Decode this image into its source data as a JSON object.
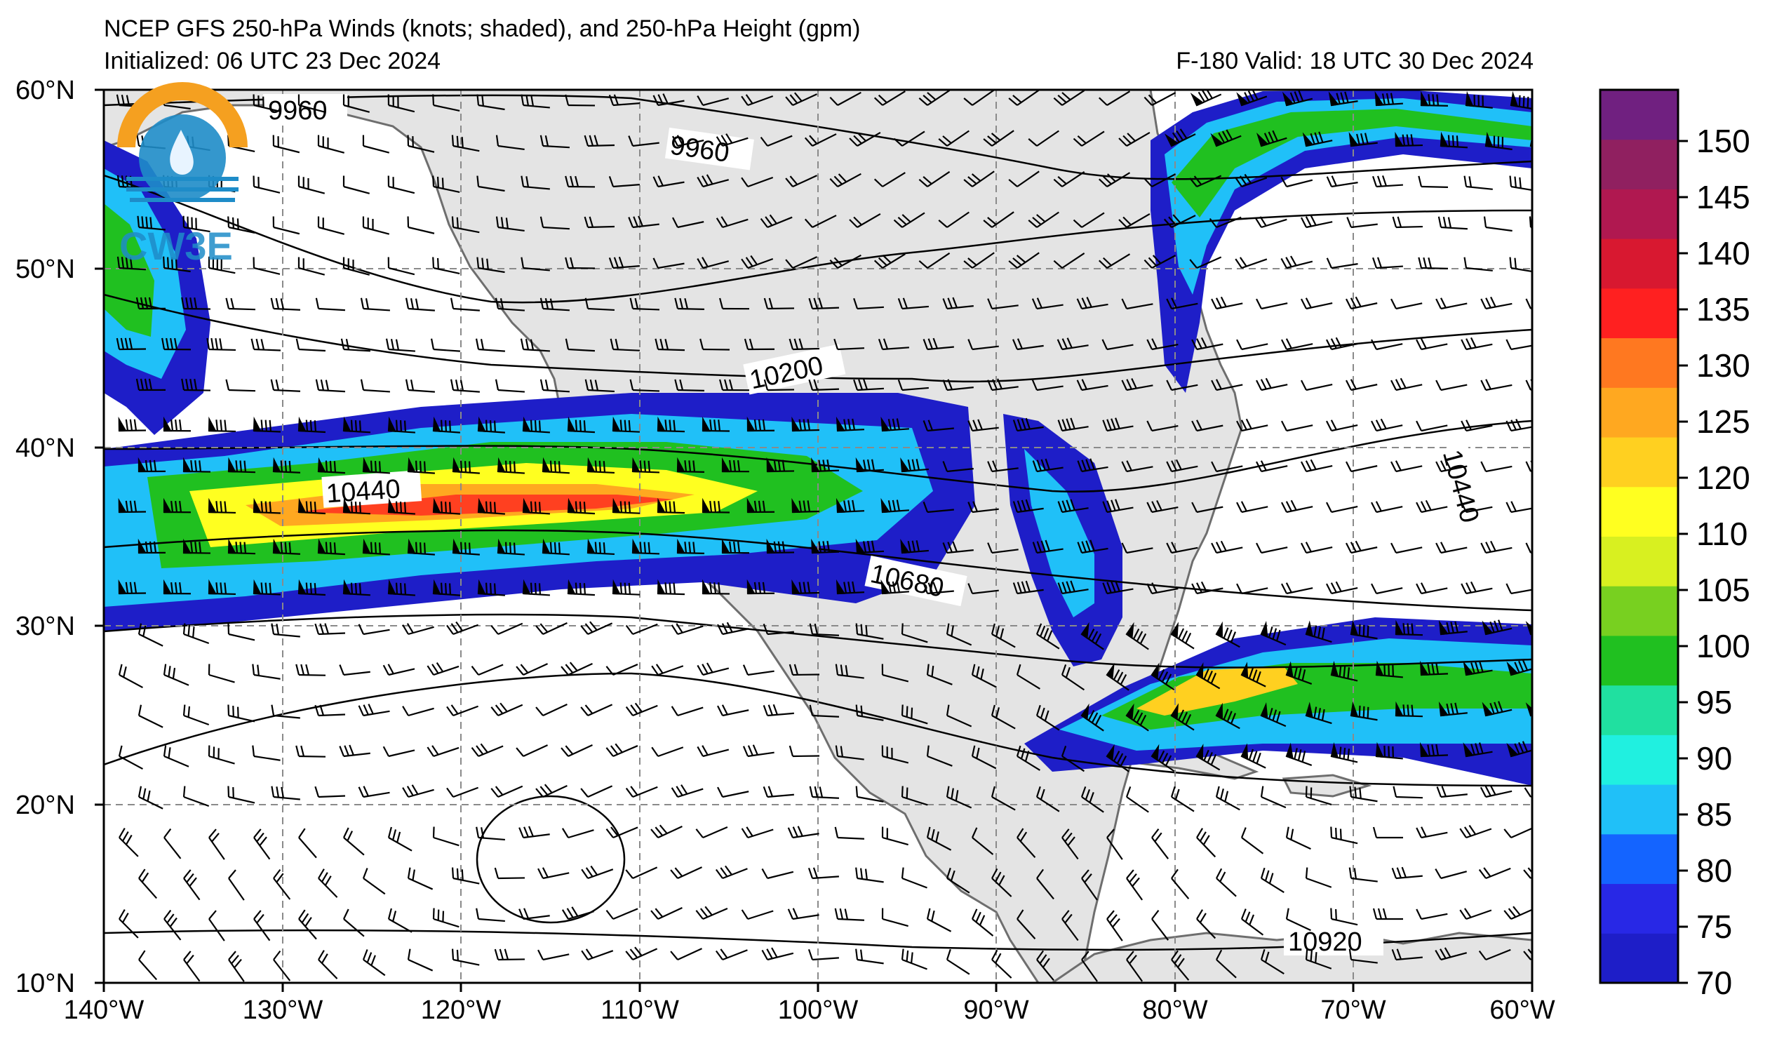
{
  "title": "NCEP GFS 250-hPa Winds (knots; shaded), and 250-hPa Height (gpm)",
  "initialized": "Initialized: 06 UTC 23 Dec 2024",
  "valid": "F-180  Valid: 18 UTC 30 Dec 2024",
  "logo_text": "CW3E",
  "lat_labels": [
    "60°N",
    "50°N",
    "40°N",
    "30°N",
    "20°N",
    "10°N"
  ],
  "lon_labels": [
    "140°W",
    "130°W",
    "120°W",
    "110°W",
    "100°W",
    "90°W",
    "80°W",
    "70°W",
    "60°W"
  ],
  "contour_labels": [
    "9960",
    "9960",
    "10200",
    "10440",
    "10680",
    "10440",
    "10920"
  ],
  "colorbar": {
    "ticks": [
      "70",
      "75",
      "80",
      "85",
      "90",
      "95",
      "100",
      "105",
      "110",
      "120",
      "125",
      "130",
      "135",
      "140",
      "145",
      "150"
    ],
    "colors": [
      "#1e1ec8",
      "#2828e6",
      "#1464ff",
      "#20c0f8",
      "#20f0e0",
      "#20e0a0",
      "#20c020",
      "#78d020",
      "#d8f020",
      "#ffff20",
      "#ffd020",
      "#ffa820",
      "#ff7820",
      "#ff2020",
      "#d81830",
      "#b01850",
      "#902060",
      "#702080"
    ]
  },
  "colors": {
    "land": "#e4e4e4",
    "ocean": "#ffffff",
    "grid": "#888888",
    "border": "#777777"
  }
}
